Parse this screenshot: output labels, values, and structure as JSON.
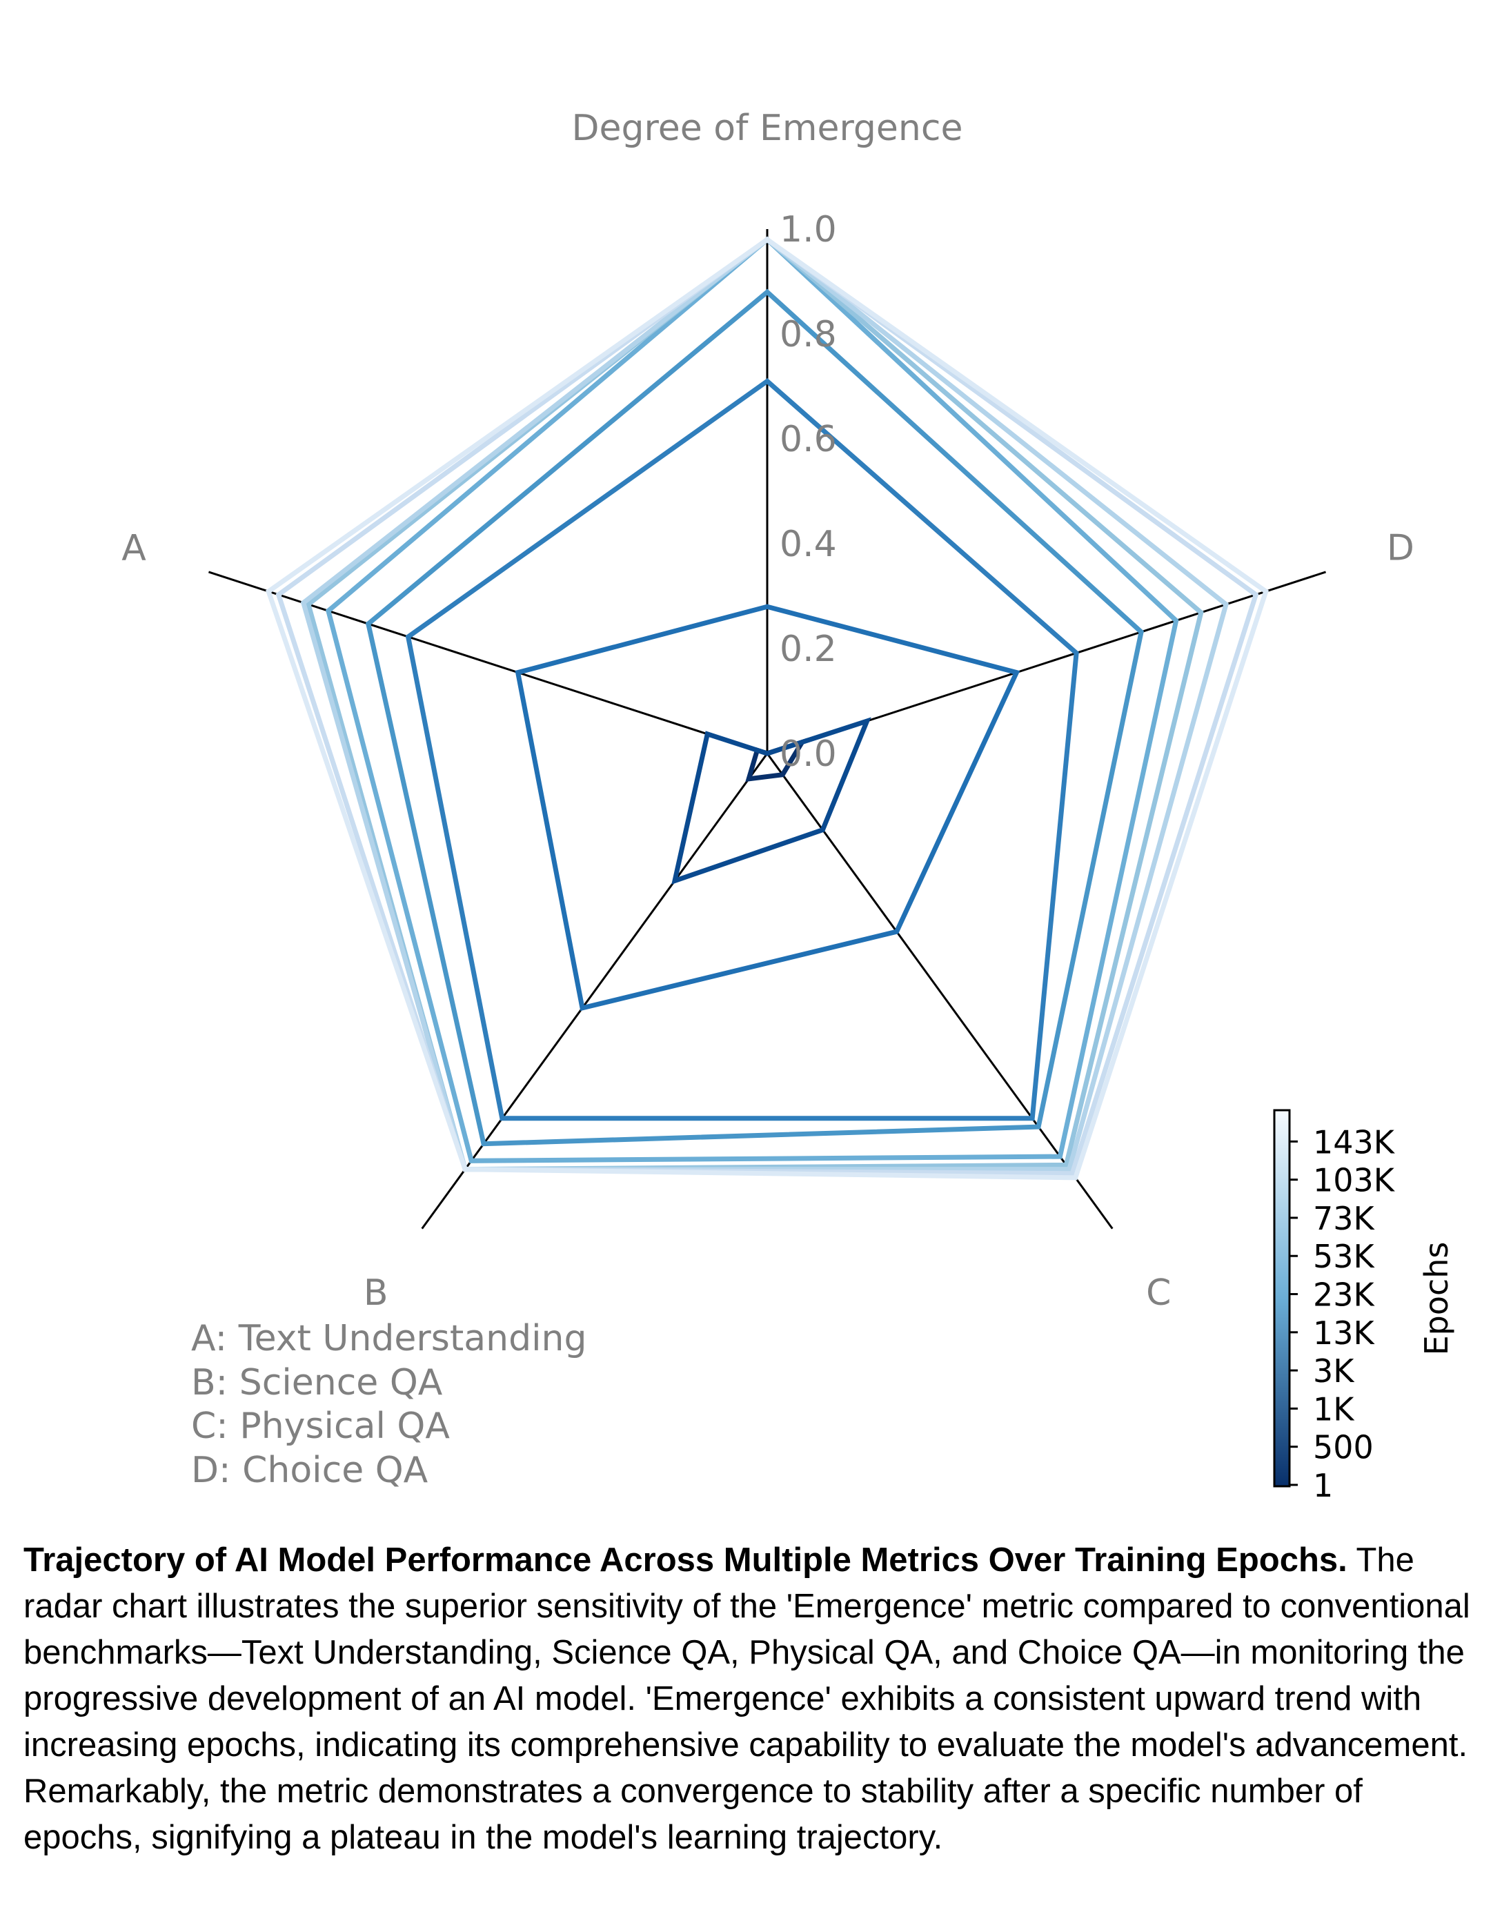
{
  "chart_data": {
    "type": "radar",
    "radial_axis_title": "Degree of Emergence",
    "axes": [
      "Degree of Emergence",
      "D",
      "C",
      "B",
      "A"
    ],
    "radial_ticks": [
      "0.0",
      "0.2",
      "0.4",
      "0.6",
      "0.8",
      "1.0"
    ],
    "rlim": [
      0,
      1.0
    ],
    "axis_legend": [
      "A: Text Understanding",
      "B: Science QA",
      "C: Physical QA",
      "D: Choice QA"
    ],
    "series": [
      {
        "name": "1",
        "color": "#08306b",
        "values": [
          0.0,
          0.07,
          0.05,
          0.06,
          0.02
        ]
      },
      {
        "name": "500",
        "color": "#0a4a90",
        "values": [
          0.0,
          0.2,
          0.18,
          0.3,
          0.12
        ]
      },
      {
        "name": "1K",
        "color": "#2070b4",
        "values": [
          0.28,
          0.5,
          0.42,
          0.6,
          0.5
        ]
      },
      {
        "name": "3K",
        "color": "#2f7ebc",
        "values": [
          0.71,
          0.62,
          0.86,
          0.86,
          0.72
        ]
      },
      {
        "name": "13K",
        "color": "#4896c8",
        "values": [
          0.88,
          0.75,
          0.88,
          0.92,
          0.8
        ]
      },
      {
        "name": "23K",
        "color": "#6baed6",
        "values": [
          0.98,
          0.82,
          0.95,
          0.96,
          0.88
        ]
      },
      {
        "name": "53K",
        "color": "#94c4df",
        "values": [
          0.98,
          0.87,
          0.97,
          0.98,
          0.92
        ]
      },
      {
        "name": "73K",
        "color": "#b2d3ea",
        "values": [
          0.98,
          0.92,
          0.98,
          0.98,
          0.93
        ]
      },
      {
        "name": "103K",
        "color": "#c8dcf0",
        "values": [
          0.98,
          0.98,
          0.99,
          0.98,
          0.98
        ]
      },
      {
        "name": "143K",
        "color": "#dbe9f6",
        "values": [
          0.98,
          1.0,
          1.0,
          0.98,
          1.0
        ]
      }
    ],
    "colorbar": {
      "label": "Epochs",
      "ticks": [
        "1",
        "500",
        "1K",
        "3K",
        "13K",
        "23K",
        "53K",
        "73K",
        "103K",
        "143K"
      ],
      "color_low": "#08306b",
      "color_mid": "#6baed6",
      "color_high": "#f7fbff"
    }
  },
  "caption": {
    "title": "Trajectory of AI Model Performance Across Multiple Metrics Over Training Epochs.",
    "body": " The radar chart illustrates the superior sensitivity of the 'Emergence' metric compared to conventional benchmarks—Text Understanding, Science QA, Physical QA, and Choice QA—in monitoring the progressive development of an AI model. 'Emergence' exhibits a consistent upward trend with increasing epochs, indicating its comprehensive capability to evaluate the model's advancement. Remarkably, the metric demonstrates a convergence to stability after a specific number of epochs, signifying a plateau in the model's learning trajectory."
  }
}
